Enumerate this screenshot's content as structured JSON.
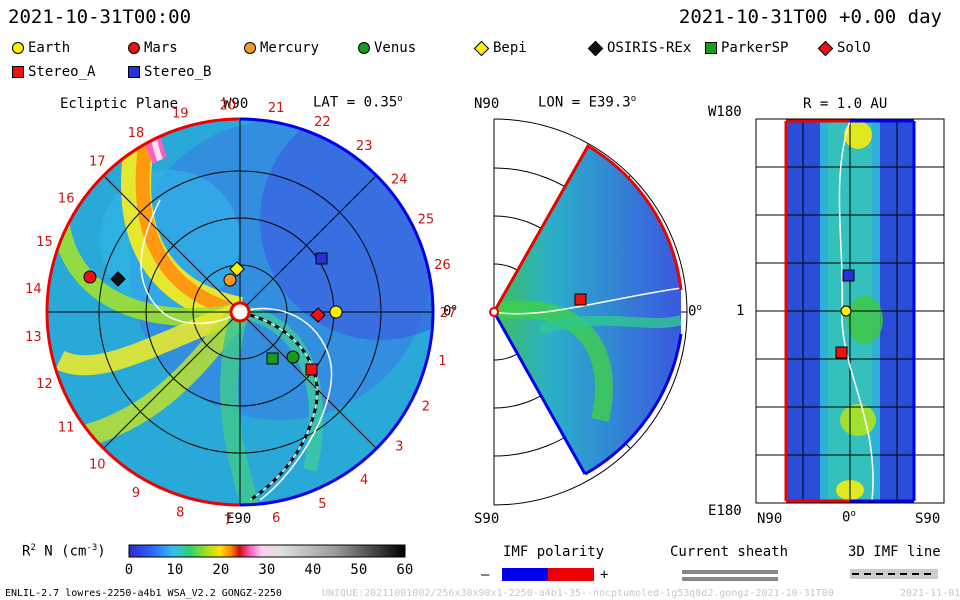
{
  "header": {
    "time_left": "2021-10-31T00:00",
    "time_right": "2021-10-31T00 +0.00 day"
  },
  "legend": {
    "items": [
      {
        "label": "Earth",
        "shape": "circle",
        "color": "#ffee00"
      },
      {
        "label": "Mars",
        "shape": "circle",
        "color": "#ee1111"
      },
      {
        "label": "Mercury",
        "shape": "circle",
        "color": "#f09a2a"
      },
      {
        "label": "Venus",
        "shape": "circle",
        "color": "#1a9a1a"
      },
      {
        "label": "Bepi",
        "shape": "diamond",
        "color": "#ffee00"
      },
      {
        "label": "OSIRIS-REx",
        "shape": "diamond",
        "color": "#111111"
      },
      {
        "label": "ParkerSP",
        "shape": "square",
        "color": "#1a9a1a"
      },
      {
        "label": "SolO",
        "shape": "diamond",
        "color": "#ee1111"
      },
      {
        "label": "Stereo_A",
        "shape": "square",
        "color": "#ee1111"
      },
      {
        "label": "Stereo_B",
        "shape": "square",
        "color": "#2233dd"
      }
    ]
  },
  "panels": {
    "ecliptic": {
      "title": "Ecliptic Plane",
      "top_label": "W90",
      "bottom_label": "E90",
      "right_label": "0",
      "lat": "LAT = 0.35",
      "carrington": [
        "1",
        "2",
        "3",
        "4",
        "5",
        "6",
        "7",
        "8",
        "9",
        "10",
        "11",
        "12",
        "13",
        "14",
        "15",
        "16",
        "17",
        "18",
        "19",
        "20",
        "21",
        "22",
        "23",
        "24",
        "25",
        "26",
        "27"
      ]
    },
    "meridional": {
      "top_label": "N90",
      "bottom_label": "S90",
      "right_label": "0",
      "lon": "LON = E39.3"
    },
    "radial": {
      "top_label": "W180",
      "bottom_label": "E180",
      "mid_label": "1",
      "r": "R = 1.0 AU",
      "x_left": "N90",
      "x_mid": "0",
      "x_right": "S90"
    }
  },
  "colorbar": {
    "label": "R",
    "label_sup": "2",
    "label_tail": " N (cm",
    "label_sup2": "-3",
    "label_end": ")",
    "ticks": [
      "0",
      "10",
      "20",
      "30",
      "40",
      "50",
      "60"
    ]
  },
  "imf_polarity": {
    "title": "IMF polarity",
    "minus": "–",
    "plus": "+"
  },
  "current_sheath": {
    "title": "Current sheath"
  },
  "imf_line": {
    "title": "3D IMF line"
  },
  "footer": {
    "left": "ENLIL-2.7 lowres-2250-a4b1 WSA_V2.2 GONGZ-2250",
    "right": "UNIQUE:20211001002/256x30x90x1-2250-a4b1-35--nocptumoled-1g53q8d2.gongz-2021-10-31T00",
    "date": "2021-11-01"
  },
  "colors": {
    "imf_neg": "#0000ee",
    "imf_pos": "#ee0000",
    "accent_red": "#cc1111"
  }
}
